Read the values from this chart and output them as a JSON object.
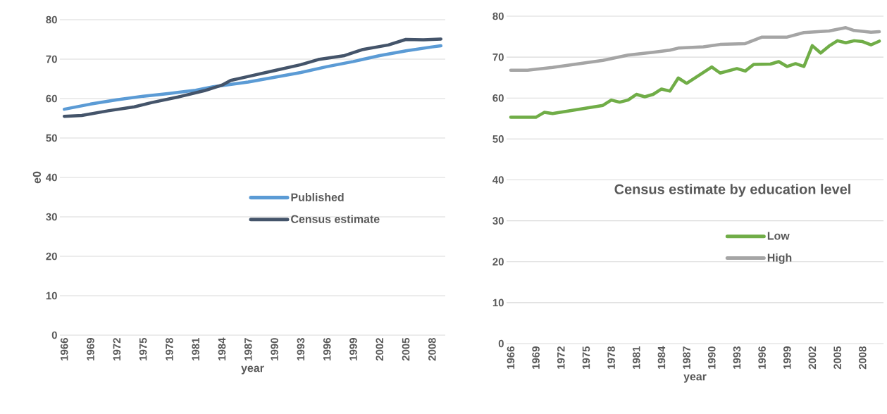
{
  "chart_data": [
    {
      "type": "line",
      "xlabel": "year",
      "ylabel": "e0",
      "xlim": [
        1965.5,
        2009.5
      ],
      "ylim": [
        0,
        80
      ],
      "xticks": [
        1966,
        1969,
        1972,
        1975,
        1978,
        1981,
        1984,
        1987,
        1990,
        1993,
        1996,
        1999,
        2002,
        2005,
        2008
      ],
      "yticks": [
        0,
        10,
        20,
        30,
        40,
        50,
        60,
        70,
        80
      ],
      "grid": "y",
      "legend": "right",
      "series": [
        {
          "name": "Published",
          "color": "#5b9bd5",
          "x": [
            1966,
            1969,
            1972,
            1975,
            1978,
            1981,
            1983,
            1987,
            1990,
            1993,
            1996,
            1999,
            2002,
            2005,
            2008,
            2009
          ],
          "values": [
            57.3,
            58.6,
            59.7,
            60.6,
            61.3,
            62.1,
            63.0,
            64.2,
            65.4,
            66.6,
            68.1,
            69.4,
            70.9,
            72.1,
            73.1,
            73.4
          ]
        },
        {
          "name": "Census estimate",
          "color": "#44546a",
          "x": [
            1966,
            1968,
            1971,
            1974,
            1976,
            1979,
            1982,
            1984,
            1985,
            1987,
            1990,
            1993,
            1995,
            1998,
            2000,
            2003,
            2005,
            2007,
            2009
          ],
          "values": [
            55.5,
            55.7,
            56.9,
            57.9,
            59.0,
            60.4,
            62.0,
            63.4,
            64.6,
            65.6,
            67.1,
            68.6,
            69.9,
            70.9,
            72.4,
            73.6,
            75.0,
            74.9,
            75.1
          ]
        }
      ]
    },
    {
      "type": "line",
      "title": "Census estimate by education level",
      "xlabel": "year",
      "xlim": [
        1965.5,
        2010.5
      ],
      "ylim": [
        0,
        80
      ],
      "xticks": [
        1966,
        1969,
        1972,
        1975,
        1978,
        1981,
        1984,
        1987,
        1990,
        1993,
        1996,
        1999,
        2002,
        2005,
        2008
      ],
      "yticks": [
        0,
        10,
        20,
        30,
        40,
        50,
        60,
        70,
        80
      ],
      "grid": "y",
      "legend": "right",
      "series": [
        {
          "name": "Low",
          "color": "#70ad47",
          "x": [
            1966,
            1969,
            1970,
            1971,
            1977,
            1978,
            1979,
            1980,
            1981,
            1982,
            1983,
            1984,
            1985,
            1986,
            1987,
            1990,
            1991,
            1993,
            1994,
            1995,
            1997,
            1998,
            1999,
            2000,
            2001,
            2002,
            2003,
            2004,
            2005,
            2006,
            2007,
            2008,
            2009,
            2010
          ],
          "values": [
            55.3,
            55.3,
            56.5,
            56.2,
            58.2,
            59.5,
            59.0,
            59.5,
            60.9,
            60.3,
            60.9,
            62.2,
            61.7,
            64.9,
            63.6,
            67.6,
            66.1,
            67.2,
            66.6,
            68.2,
            68.3,
            68.9,
            67.7,
            68.4,
            67.7,
            72.8,
            71.0,
            72.7,
            74.0,
            73.5,
            74.0,
            73.8,
            73.0,
            73.9
          ]
        },
        {
          "name": "High",
          "color": "#a5a5a5",
          "x": [
            1966,
            1968,
            1971,
            1977,
            1980,
            1983,
            1985,
            1986,
            1989,
            1991,
            1994,
            1996,
            1999,
            2001,
            2004,
            2006,
            2007,
            2009,
            2010
          ],
          "values": [
            66.8,
            66.8,
            67.5,
            69.2,
            70.5,
            71.2,
            71.7,
            72.2,
            72.5,
            73.1,
            73.3,
            74.9,
            74.9,
            76.0,
            76.4,
            77.2,
            76.5,
            76.1,
            76.2
          ]
        }
      ]
    }
  ]
}
